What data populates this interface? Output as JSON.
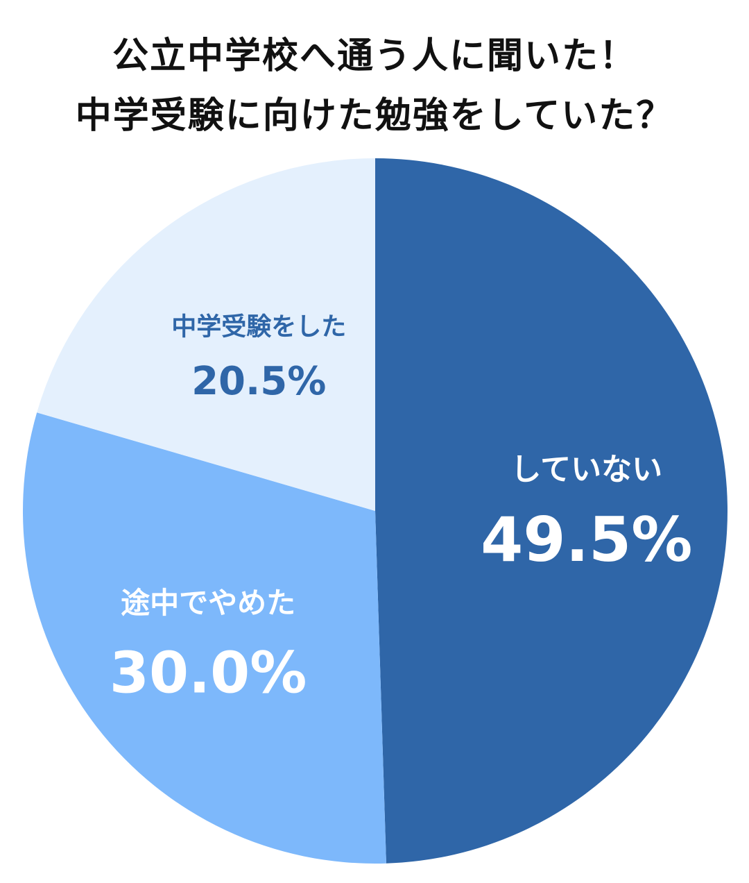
{
  "title_lines": [
    "公立中学校へ通う人に聞いた！",
    "中学受験に向けた勉強をしていた？"
  ],
  "chart_data": {
    "type": "pie",
    "start_angle_deg": 0,
    "direction": "clockwise",
    "slices": [
      {
        "label": "していない",
        "value": 49.5,
        "display": "49.5%",
        "color": "#2f66a8",
        "text_color": "#ffffff"
      },
      {
        "label": "途中でやめた",
        "value": 30.0,
        "display": "30.0%",
        "color": "#7db8fb",
        "text_color": "#ffffff"
      },
      {
        "label": "中学受験をした",
        "value": 20.5,
        "display": "20.5%",
        "color": "#e4f0fd",
        "text_color": "#2f66a8"
      }
    ]
  }
}
